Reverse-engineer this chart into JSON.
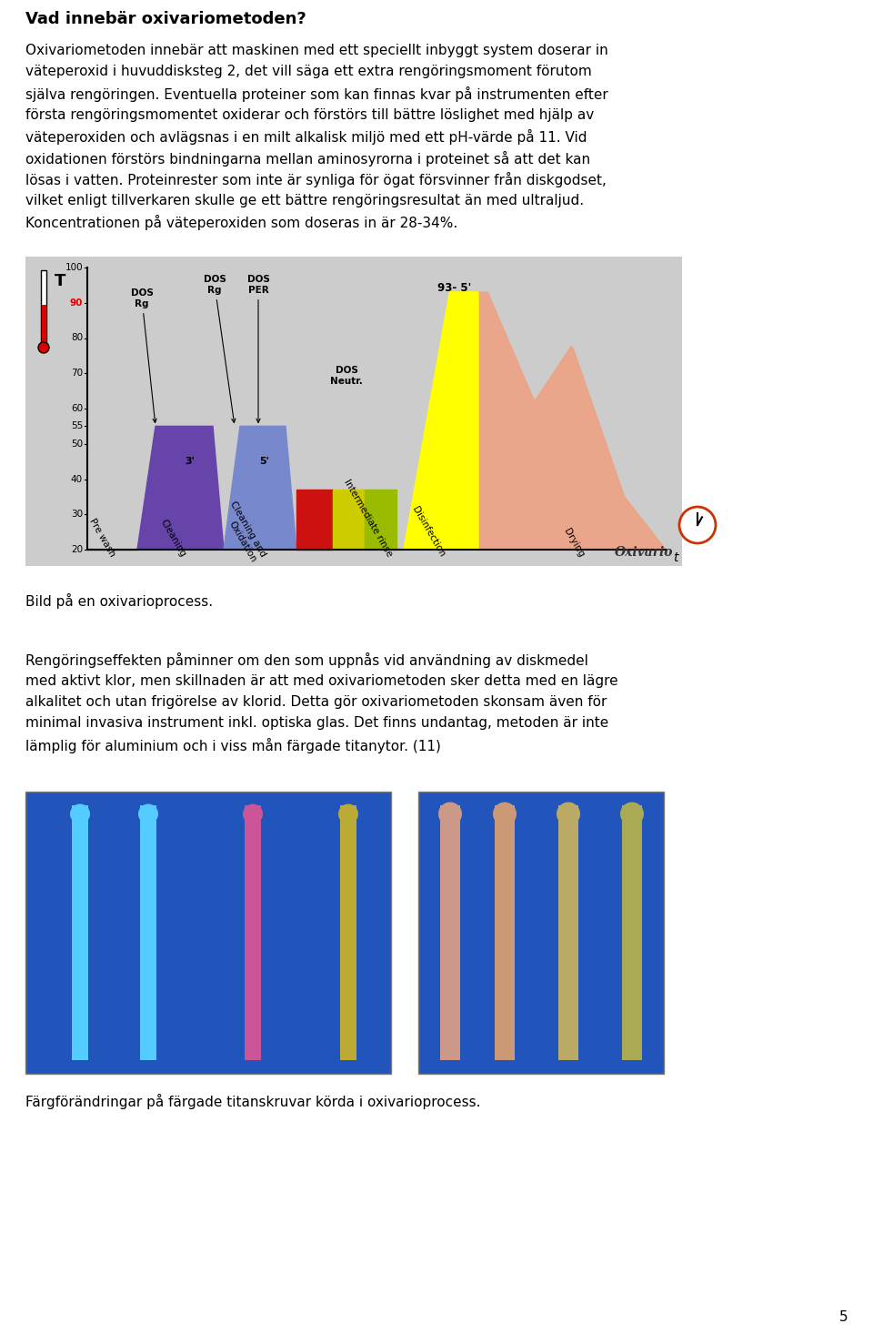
{
  "title": "Vad innebär oxivariometoden?",
  "para1_line1": "Oxivariometoden innebär att maskinen med ett speciellt inbyggt system doserar in",
  "para1_line2": "väteperoxid i huvuddisksteg 2, det vill säga ett extra rengöringsmoment förutom",
  "para1_line3": "själva rengöringen. Eventuella proteiner som kan finnas kvar på instrumenten efter",
  "para1_line4": "första rengöringsmomentet oxiderar och förstörs till bättre löslighet med hjälp av",
  "para1_line5": "väteperoxiden och avlägsnas i en milt alkalisk miljö med ett pH-värde på 11. Vid",
  "para1_line6": "oxidationen förstörs bindningarna mellan aminosyrorna i proteinet så att det kan",
  "para1_line7": "lösas i vatten. Proteinrester som inte är synliga för ögat försvinner från diskgodset,",
  "para1_line8": "vilket enligt tillverkaren skulle ge ett bättre rengöringsresultat än med ultraljud.",
  "para1_line9": "Koncentrationen på väteperoxiden som doseras in är 28-34%.",
  "caption1": "Bild på en oxivarioprocess.",
  "para2_line1": "Rengöringseffekten påminner om den som uppnås vid användning av diskmedel",
  "para2_line2": "med aktivt klor, men skillnaden är att med oxivariometoden sker detta med en lägre",
  "para2_line3": "alkalitet och utan frigörelse av klorid. Detta gör oxivariometoden skonsam även för",
  "para2_line4": "minimal invasiva instrument inkl. optiska glas. Det finns undantag, metoden är inte",
  "para2_line5": "lämplig för aluminium och i viss mån färgade titanytor. (11)",
  "caption2": "Färgförändringar på färgade titanskruvar körda i oxivarioprocess.",
  "page_number": "5",
  "bg": "#ffffff",
  "fg": "#000000",
  "chart_bg": "#cccccc",
  "prewash_color": "#3a7a3a",
  "cleaning_color": "#6644aa",
  "oxid_color": "#7788cc",
  "red_color": "#cc1111",
  "neutr_color": "#bbbb00",
  "inter_color": "#99bb00",
  "disinfect_color": "#ffff00",
  "drying_color": "#f0a080",
  "oxivario_label": "Oxivario",
  "img1_bg": "#2255cc",
  "img2_bg": "#2255cc"
}
